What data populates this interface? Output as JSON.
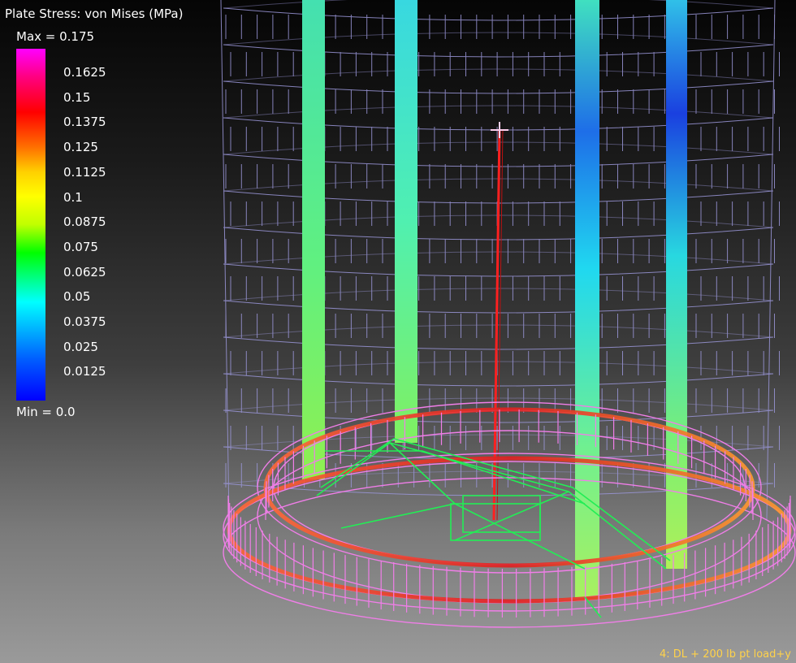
{
  "legend": {
    "title": "Plate Stress: von Mises (MPa)",
    "max_label": "Max = 0.175",
    "min_label": "Min = 0.0",
    "ticks": [
      "0.1625",
      "0.15",
      "0.1375",
      "0.125",
      "0.1125",
      "0.1",
      "0.0875",
      "0.075",
      "0.0625",
      "0.05",
      "0.0375",
      "0.025",
      "0.0125"
    ]
  },
  "load_case": "4: DL + 200 lb pt load+y",
  "colors": {
    "background_top": "#050505",
    "background_bottom": "#9a9a9a",
    "wireframe": "#9a96d8",
    "ring": "#f07ee8",
    "bracing": "#22ee55",
    "point_load": "#ff2020",
    "load_case_text": "#ffd24a"
  }
}
